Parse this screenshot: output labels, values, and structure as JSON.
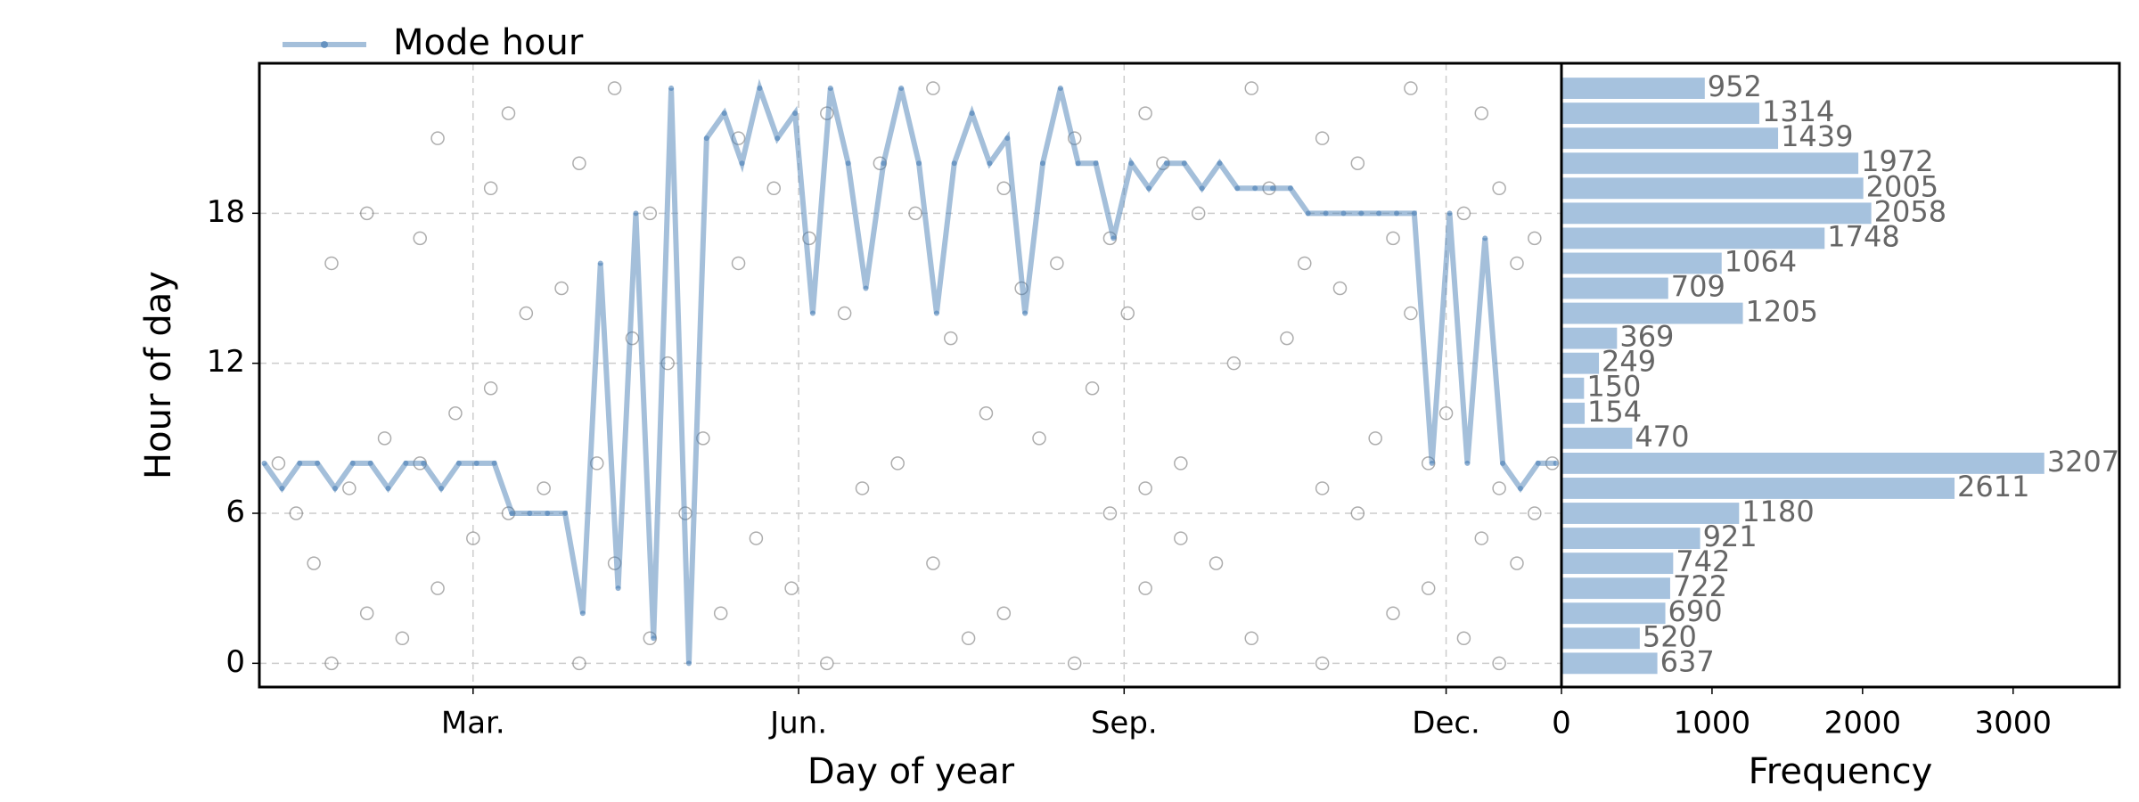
{
  "chart_data": [
    {
      "type": "scatter",
      "xlabel": "Day of year",
      "ylabel": "Hour of day",
      "xlim": [
        -0.4,
        367.6
      ],
      "ylim": [
        -0.95,
        24.0
      ],
      "xticks": [
        {
          "value": 60,
          "label": "Mar."
        },
        {
          "value": 152,
          "label": "Jun."
        },
        {
          "value": 244,
          "label": "Sep."
        },
        {
          "value": 335,
          "label": "Dec."
        }
      ],
      "yticks": [
        0,
        6,
        12,
        18
      ],
      "grid": true,
      "legend": "upper left",
      "points": {
        "color": "#777777",
        "x": [
          20,
          90,
          160,
          230,
          300,
          350,
          40,
          110,
          200,
          280,
          340,
          30,
          130,
          210,
          320,
          50,
          150,
          250,
          330,
          15,
          100,
          190,
          270,
          355,
          60,
          140,
          260,
          345,
          10,
          70,
          120,
          240,
          310,
          360,
          25,
          80,
          170,
          250,
          300,
          350,
          5,
          45,
          95,
          180,
          260,
          330,
          365,
          35,
          125,
          220,
          315,
          55,
          205,
          335,
          65,
          235,
          115,
          275,
          105,
          195,
          290,
          75,
          165,
          245,
          325,
          85,
          215,
          305,
          20,
          135,
          225,
          295,
          355,
          45,
          155,
          240,
          320,
          360,
          30,
          110,
          185,
          265,
          340,
          65,
          145,
          210,
          285,
          350,
          90,
          175,
          255,
          310,
          50,
          135,
          230,
          300,
          70,
          160,
          250,
          345,
          100,
          190,
          280,
          325
        ],
        "y": [
          0,
          0,
          0,
          0,
          0,
          0,
          1,
          1,
          1,
          1,
          1,
          2,
          2,
          2,
          2,
          3,
          3,
          3,
          3,
          4,
          4,
          4,
          4,
          4,
          5,
          5,
          5,
          5,
          6,
          6,
          6,
          6,
          6,
          6,
          7,
          7,
          7,
          7,
          7,
          7,
          8,
          8,
          8,
          8,
          8,
          8,
          8,
          9,
          9,
          9,
          9,
          10,
          10,
          10,
          11,
          11,
          12,
          12,
          13,
          13,
          13,
          14,
          14,
          14,
          14,
          15,
          15,
          15,
          16,
          16,
          16,
          16,
          16,
          17,
          17,
          17,
          17,
          17,
          18,
          18,
          18,
          18,
          18,
          19,
          19,
          19,
          19,
          19,
          20,
          20,
          20,
          20,
          21,
          21,
          21,
          21,
          22,
          22,
          22,
          22,
          23,
          23,
          23,
          23
        ]
      },
      "series": [
        {
          "name": "Mode hour",
          "color": "#4a7fb5",
          "x": [
            1,
            6,
            11,
            16,
            21,
            26,
            31,
            36,
            41,
            46,
            51,
            56,
            61,
            66,
            71,
            76,
            81,
            86,
            91,
            96,
            101,
            106,
            111,
            116,
            121,
            126,
            131,
            136,
            141,
            146,
            151,
            156,
            161,
            166,
            171,
            176,
            181,
            186,
            191,
            196,
            201,
            206,
            211,
            216,
            221,
            226,
            231,
            236,
            241,
            246,
            251,
            256,
            261,
            266,
            271,
            276,
            281,
            286,
            291,
            296,
            301,
            306,
            311,
            316,
            321,
            326,
            331,
            336,
            341,
            346,
            351,
            356,
            361,
            366
          ],
          "values": [
            8,
            7,
            8,
            8,
            7,
            8,
            8,
            7,
            8,
            8,
            7,
            8,
            8,
            8,
            6,
            6,
            6,
            6,
            2,
            16,
            3,
            18,
            1,
            23,
            0,
            21,
            22,
            20,
            23,
            21,
            22,
            14,
            23,
            20,
            15,
            20,
            23,
            20,
            14,
            20,
            22,
            20,
            21,
            14,
            20,
            23,
            20,
            20,
            17,
            20,
            19,
            20,
            20,
            19,
            20,
            19,
            19,
            19,
            19,
            18,
            18,
            18,
            18,
            18,
            18,
            18,
            8,
            18,
            8,
            17,
            8,
            7,
            8,
            8
          ]
        }
      ]
    },
    {
      "type": "bar",
      "orientation": "horizontal",
      "xlabel": "Frequency",
      "xlim": [
        0,
        3706
      ],
      "ylim": [
        -0.95,
        24.0
      ],
      "xticks": [
        0,
        1000,
        2000,
        3000
      ],
      "grid": false,
      "color": "#a6c2de",
      "categories": [
        null,
        null,
        null,
        null,
        null,
        null,
        null,
        null,
        null,
        null,
        null,
        null,
        null,
        null,
        null,
        null,
        null,
        null,
        null,
        null,
        null,
        null,
        null,
        null
      ],
      "values": [
        637,
        520,
        690,
        722,
        742,
        921,
        1180,
        2611,
        3207,
        470,
        154,
        150,
        249,
        369,
        1205,
        709,
        1064,
        1748,
        2058,
        2005,
        1972,
        1439,
        1314,
        952
      ]
    }
  ]
}
